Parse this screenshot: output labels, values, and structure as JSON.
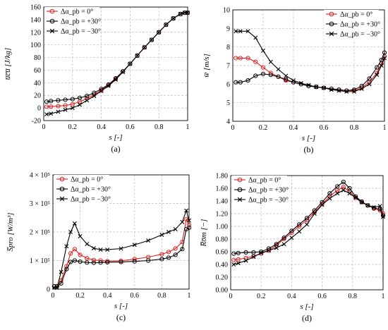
{
  "chart_data": [
    {
      "type": "line",
      "panel_label": "(a)",
      "xlabel": "s [-]",
      "ylabel": "u̅c̅u̅ [J/kg]",
      "xlim": [
        0,
        1
      ],
      "ylim": [
        -20,
        160
      ],
      "xticks": [
        "0",
        "0.2",
        "0.4",
        "0.6",
        "0.8",
        "1"
      ],
      "yticks": [
        "-20",
        "0",
        "20",
        "40",
        "60",
        "80",
        "100",
        "120",
        "140",
        "160"
      ],
      "grid": true,
      "legend_position": "top-left",
      "series": [
        {
          "name": "Δα_pb = 0°",
          "color": "#e02020",
          "marker": "circle",
          "x": [
            0.02,
            0.05,
            0.1,
            0.15,
            0.2,
            0.25,
            0.3,
            0.35,
            0.4,
            0.45,
            0.5,
            0.55,
            0.6,
            0.65,
            0.7,
            0.75,
            0.8,
            0.85,
            0.9,
            0.95,
            0.98,
            1.0
          ],
          "y": [
            2,
            2,
            3,
            4,
            6,
            10,
            15,
            21,
            28,
            36,
            46,
            58,
            70,
            83,
            96,
            108,
            120,
            132,
            142,
            149,
            151,
            151
          ]
        },
        {
          "name": "Δα_pb = +30°",
          "color": "#000000",
          "marker": "circle",
          "x": [
            0.02,
            0.05,
            0.1,
            0.15,
            0.2,
            0.25,
            0.3,
            0.35,
            0.4,
            0.45,
            0.5,
            0.55,
            0.6,
            0.65,
            0.7,
            0.75,
            0.8,
            0.85,
            0.9,
            0.95,
            0.98,
            1.0
          ],
          "y": [
            10,
            11,
            12,
            13,
            14,
            16,
            19,
            24,
            30,
            37,
            47,
            58,
            70,
            83,
            96,
            108,
            120,
            132,
            142,
            149,
            151,
            151
          ]
        },
        {
          "name": "Δα_pb = −30°",
          "color": "#000000",
          "marker": "cross",
          "x": [
            0.02,
            0.05,
            0.1,
            0.15,
            0.2,
            0.25,
            0.3,
            0.35,
            0.4,
            0.45,
            0.5,
            0.55,
            0.6,
            0.65,
            0.7,
            0.75,
            0.8,
            0.85,
            0.9,
            0.95,
            0.98,
            1.0
          ],
          "y": [
            -10,
            -9,
            -6,
            -3,
            0,
            5,
            12,
            19,
            27,
            35,
            45,
            57,
            70,
            83,
            96,
            108,
            120,
            132,
            142,
            149,
            151,
            151
          ]
        }
      ]
    },
    {
      "type": "line",
      "panel_label": "(b)",
      "xlabel": "s [-]",
      "ylabel": "w̅ [m/s]",
      "xlim": [
        0,
        1
      ],
      "ylim": [
        4,
        10
      ],
      "xticks": [
        "0",
        "0.2",
        "0.4",
        "0.6",
        "0.8",
        "1"
      ],
      "yticks": [
        "4",
        "5",
        "6",
        "7",
        "8",
        "9",
        "10"
      ],
      "grid": true,
      "legend_position": "top-right",
      "series": [
        {
          "name": "Δα_pb = 0°",
          "color": "#e02020",
          "marker": "circle",
          "x": [
            0.02,
            0.05,
            0.1,
            0.15,
            0.2,
            0.25,
            0.3,
            0.35,
            0.4,
            0.45,
            0.5,
            0.55,
            0.6,
            0.65,
            0.7,
            0.75,
            0.8,
            0.85,
            0.9,
            0.95,
            0.98,
            1.0
          ],
          "y": [
            7.4,
            7.4,
            7.4,
            7.2,
            6.9,
            6.6,
            6.4,
            6.2,
            6.1,
            6.0,
            5.9,
            5.85,
            5.8,
            5.75,
            5.7,
            5.65,
            5.65,
            5.8,
            6.1,
            6.6,
            7.1,
            7.5
          ]
        },
        {
          "name": "Δα_pb = +30°",
          "color": "#000000",
          "marker": "circle",
          "x": [
            0.02,
            0.05,
            0.1,
            0.15,
            0.2,
            0.25,
            0.3,
            0.35,
            0.4,
            0.45,
            0.5,
            0.55,
            0.6,
            0.65,
            0.7,
            0.75,
            0.8,
            0.85,
            0.9,
            0.95,
            0.98,
            1.0
          ],
          "y": [
            6.1,
            6.1,
            6.2,
            6.45,
            6.55,
            6.5,
            6.4,
            6.25,
            6.1,
            6.0,
            5.9,
            5.85,
            5.8,
            5.75,
            5.7,
            5.65,
            5.7,
            5.9,
            6.3,
            6.9,
            7.3,
            7.7
          ]
        },
        {
          "name": "Δα_pb = −30°",
          "color": "#000000",
          "marker": "cross",
          "x": [
            0.02,
            0.05,
            0.1,
            0.15,
            0.2,
            0.25,
            0.3,
            0.35,
            0.4,
            0.45,
            0.5,
            0.55,
            0.6,
            0.65,
            0.7,
            0.75,
            0.8,
            0.85,
            0.9,
            0.95,
            0.98,
            1.0
          ],
          "y": [
            8.85,
            8.85,
            8.85,
            8.5,
            7.8,
            7.2,
            6.8,
            6.45,
            6.2,
            6.05,
            5.95,
            5.85,
            5.8,
            5.7,
            5.65,
            5.6,
            5.6,
            5.75,
            6.0,
            6.5,
            7.0,
            7.4
          ]
        }
      ]
    },
    {
      "type": "line",
      "panel_label": "(c)",
      "xlabel": "s [-]",
      "ylabel": "S̅pro [W/m³]",
      "xlim": [
        0,
        1
      ],
      "ylim": [
        0,
        400000
      ],
      "xticks": [
        "0",
        "0.2",
        "0.4",
        "0.6",
        "0.8",
        "1"
      ],
      "yticks": [
        "0",
        "1 × 10⁵",
        "2 × 10⁵",
        "3 × 10⁵",
        "4 × 10⁵"
      ],
      "grid": true,
      "legend_position": "top-left",
      "series": [
        {
          "name": "Δα_pb = 0°",
          "color": "#e02020",
          "marker": "circle",
          "x": [
            0.01,
            0.03,
            0.06,
            0.1,
            0.13,
            0.16,
            0.2,
            0.25,
            0.3,
            0.35,
            0.4,
            0.5,
            0.6,
            0.7,
            0.8,
            0.85,
            0.9,
            0.95,
            0.98,
            1.0
          ],
          "y": [
            10000,
            10000,
            30000,
            80000,
            125000,
            140000,
            120000,
            108000,
            102000,
            100000,
            98000,
            99000,
            105000,
            112000,
            122000,
            130000,
            142000,
            165000,
            245000,
            225000
          ]
        },
        {
          "name": "Δα_pb = +30°",
          "color": "#000000",
          "marker": "circle",
          "x": [
            0.01,
            0.03,
            0.06,
            0.1,
            0.13,
            0.16,
            0.2,
            0.25,
            0.3,
            0.35,
            0.4,
            0.5,
            0.6,
            0.7,
            0.8,
            0.85,
            0.9,
            0.95,
            0.98,
            1.0
          ],
          "y": [
            10000,
            10000,
            20000,
            70000,
            95000,
            100000,
            96000,
            93000,
            92000,
            93000,
            94000,
            95000,
            97000,
            100000,
            105000,
            110000,
            120000,
            140000,
            210000,
            215000
          ]
        },
        {
          "name": "Δα_pb = −30°",
          "color": "#000000",
          "marker": "cross",
          "x": [
            0.01,
            0.03,
            0.06,
            0.1,
            0.13,
            0.16,
            0.2,
            0.25,
            0.3,
            0.35,
            0.4,
            0.5,
            0.6,
            0.7,
            0.8,
            0.85,
            0.9,
            0.95,
            0.98,
            1.0
          ],
          "y": [
            5000,
            5000,
            60000,
            150000,
            200000,
            230000,
            185000,
            158000,
            143000,
            138000,
            138000,
            142000,
            155000,
            170000,
            190000,
            200000,
            210000,
            235000,
            275000,
            240000
          ]
        }
      ]
    },
    {
      "type": "line",
      "panel_label": "(d)",
      "xlabel": "s [-]",
      "ylabel": "R̅o̅m [−]",
      "xlim": [
        0,
        1
      ],
      "ylim": [
        0,
        1.8
      ],
      "xticks": [
        "0",
        "0.2",
        "0.4",
        "0.6",
        "0.8",
        "1"
      ],
      "yticks": [
        "0.00",
        "0.20",
        "0.40",
        "0.60",
        "0.80",
        "1.00",
        "1.20",
        "1.40",
        "1.60",
        "1.80"
      ],
      "grid": true,
      "legend_position": "top-left",
      "series": [
        {
          "name": "Δα_pb = 0°",
          "color": "#e02020",
          "marker": "circle",
          "x": [
            0.02,
            0.05,
            0.1,
            0.15,
            0.2,
            0.25,
            0.3,
            0.35,
            0.4,
            0.45,
            0.5,
            0.55,
            0.6,
            0.65,
            0.7,
            0.74,
            0.78,
            0.82,
            0.86,
            0.9,
            0.94,
            0.98,
            1.0
          ],
          "y": [
            0.47,
            0.48,
            0.5,
            0.53,
            0.57,
            0.62,
            0.7,
            0.8,
            0.9,
            1.0,
            1.1,
            1.22,
            1.35,
            1.47,
            1.57,
            1.62,
            1.55,
            1.45,
            1.38,
            1.33,
            1.28,
            1.25,
            1.2
          ]
        },
        {
          "name": "Δα_pb = +30°",
          "color": "#000000",
          "marker": "circle",
          "x": [
            0.02,
            0.05,
            0.1,
            0.15,
            0.2,
            0.25,
            0.3,
            0.35,
            0.4,
            0.45,
            0.5,
            0.55,
            0.6,
            0.65,
            0.7,
            0.74,
            0.78,
            0.82,
            0.86,
            0.9,
            0.94,
            0.98,
            1.0
          ],
          "y": [
            0.57,
            0.58,
            0.59,
            0.59,
            0.6,
            0.65,
            0.72,
            0.82,
            0.93,
            1.03,
            1.13,
            1.25,
            1.38,
            1.52,
            1.63,
            1.7,
            1.6,
            1.47,
            1.39,
            1.33,
            1.29,
            1.27,
            1.17
          ]
        },
        {
          "name": "Δα_pb = −30°",
          "color": "#000000",
          "marker": "cross",
          "x": [
            0.02,
            0.05,
            0.1,
            0.15,
            0.2,
            0.25,
            0.3,
            0.35,
            0.4,
            0.45,
            0.5,
            0.55,
            0.6,
            0.65,
            0.7,
            0.74,
            0.78,
            0.82,
            0.86,
            0.9,
            0.94,
            0.98,
            1.0
          ],
          "y": [
            0.4,
            0.42,
            0.46,
            0.52,
            0.58,
            0.62,
            0.66,
            0.72,
            0.82,
            0.92,
            1.03,
            1.2,
            1.34,
            1.44,
            1.52,
            1.57,
            1.52,
            1.45,
            1.38,
            1.33,
            1.3,
            1.32,
            1.15
          ]
        }
      ]
    }
  ]
}
